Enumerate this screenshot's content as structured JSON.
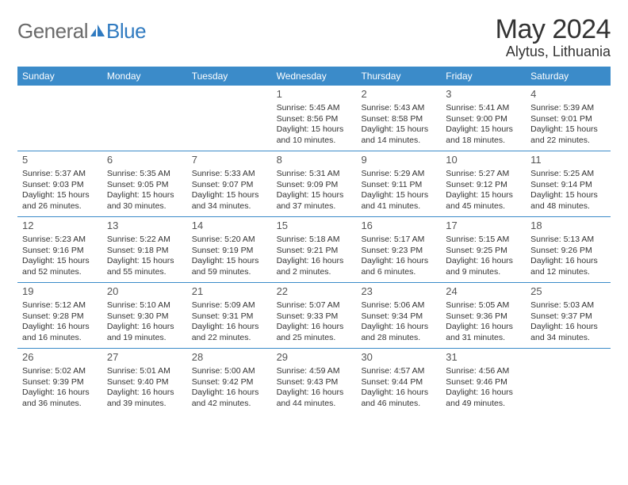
{
  "logo": {
    "text1": "General",
    "text2": "Blue"
  },
  "header": {
    "month": "May 2024",
    "location": "Alytus, Lithuania"
  },
  "colors": {
    "headerbar_bg": "#3b8bc9",
    "headerbar_text": "#ffffff",
    "row_border": "#3b8bc9",
    "logo_gray": "#6a6a6a",
    "logo_blue": "#2f7ac0",
    "title_text": "#333333",
    "body_text": "#333333",
    "page_bg": "#ffffff"
  },
  "weekdays": [
    "Sunday",
    "Monday",
    "Tuesday",
    "Wednesday",
    "Thursday",
    "Friday",
    "Saturday"
  ],
  "weeks": [
    [
      null,
      null,
      null,
      {
        "n": "1",
        "sunrise": "Sunrise: 5:45 AM",
        "sunset": "Sunset: 8:56 PM",
        "day1": "Daylight: 15 hours",
        "day2": "and 10 minutes."
      },
      {
        "n": "2",
        "sunrise": "Sunrise: 5:43 AM",
        "sunset": "Sunset: 8:58 PM",
        "day1": "Daylight: 15 hours",
        "day2": "and 14 minutes."
      },
      {
        "n": "3",
        "sunrise": "Sunrise: 5:41 AM",
        "sunset": "Sunset: 9:00 PM",
        "day1": "Daylight: 15 hours",
        "day2": "and 18 minutes."
      },
      {
        "n": "4",
        "sunrise": "Sunrise: 5:39 AM",
        "sunset": "Sunset: 9:01 PM",
        "day1": "Daylight: 15 hours",
        "day2": "and 22 minutes."
      }
    ],
    [
      {
        "n": "5",
        "sunrise": "Sunrise: 5:37 AM",
        "sunset": "Sunset: 9:03 PM",
        "day1": "Daylight: 15 hours",
        "day2": "and 26 minutes."
      },
      {
        "n": "6",
        "sunrise": "Sunrise: 5:35 AM",
        "sunset": "Sunset: 9:05 PM",
        "day1": "Daylight: 15 hours",
        "day2": "and 30 minutes."
      },
      {
        "n": "7",
        "sunrise": "Sunrise: 5:33 AM",
        "sunset": "Sunset: 9:07 PM",
        "day1": "Daylight: 15 hours",
        "day2": "and 34 minutes."
      },
      {
        "n": "8",
        "sunrise": "Sunrise: 5:31 AM",
        "sunset": "Sunset: 9:09 PM",
        "day1": "Daylight: 15 hours",
        "day2": "and 37 minutes."
      },
      {
        "n": "9",
        "sunrise": "Sunrise: 5:29 AM",
        "sunset": "Sunset: 9:11 PM",
        "day1": "Daylight: 15 hours",
        "day2": "and 41 minutes."
      },
      {
        "n": "10",
        "sunrise": "Sunrise: 5:27 AM",
        "sunset": "Sunset: 9:12 PM",
        "day1": "Daylight: 15 hours",
        "day2": "and 45 minutes."
      },
      {
        "n": "11",
        "sunrise": "Sunrise: 5:25 AM",
        "sunset": "Sunset: 9:14 PM",
        "day1": "Daylight: 15 hours",
        "day2": "and 48 minutes."
      }
    ],
    [
      {
        "n": "12",
        "sunrise": "Sunrise: 5:23 AM",
        "sunset": "Sunset: 9:16 PM",
        "day1": "Daylight: 15 hours",
        "day2": "and 52 minutes."
      },
      {
        "n": "13",
        "sunrise": "Sunrise: 5:22 AM",
        "sunset": "Sunset: 9:18 PM",
        "day1": "Daylight: 15 hours",
        "day2": "and 55 minutes."
      },
      {
        "n": "14",
        "sunrise": "Sunrise: 5:20 AM",
        "sunset": "Sunset: 9:19 PM",
        "day1": "Daylight: 15 hours",
        "day2": "and 59 minutes."
      },
      {
        "n": "15",
        "sunrise": "Sunrise: 5:18 AM",
        "sunset": "Sunset: 9:21 PM",
        "day1": "Daylight: 16 hours",
        "day2": "and 2 minutes."
      },
      {
        "n": "16",
        "sunrise": "Sunrise: 5:17 AM",
        "sunset": "Sunset: 9:23 PM",
        "day1": "Daylight: 16 hours",
        "day2": "and 6 minutes."
      },
      {
        "n": "17",
        "sunrise": "Sunrise: 5:15 AM",
        "sunset": "Sunset: 9:25 PM",
        "day1": "Daylight: 16 hours",
        "day2": "and 9 minutes."
      },
      {
        "n": "18",
        "sunrise": "Sunrise: 5:13 AM",
        "sunset": "Sunset: 9:26 PM",
        "day1": "Daylight: 16 hours",
        "day2": "and 12 minutes."
      }
    ],
    [
      {
        "n": "19",
        "sunrise": "Sunrise: 5:12 AM",
        "sunset": "Sunset: 9:28 PM",
        "day1": "Daylight: 16 hours",
        "day2": "and 16 minutes."
      },
      {
        "n": "20",
        "sunrise": "Sunrise: 5:10 AM",
        "sunset": "Sunset: 9:30 PM",
        "day1": "Daylight: 16 hours",
        "day2": "and 19 minutes."
      },
      {
        "n": "21",
        "sunrise": "Sunrise: 5:09 AM",
        "sunset": "Sunset: 9:31 PM",
        "day1": "Daylight: 16 hours",
        "day2": "and 22 minutes."
      },
      {
        "n": "22",
        "sunrise": "Sunrise: 5:07 AM",
        "sunset": "Sunset: 9:33 PM",
        "day1": "Daylight: 16 hours",
        "day2": "and 25 minutes."
      },
      {
        "n": "23",
        "sunrise": "Sunrise: 5:06 AM",
        "sunset": "Sunset: 9:34 PM",
        "day1": "Daylight: 16 hours",
        "day2": "and 28 minutes."
      },
      {
        "n": "24",
        "sunrise": "Sunrise: 5:05 AM",
        "sunset": "Sunset: 9:36 PM",
        "day1": "Daylight: 16 hours",
        "day2": "and 31 minutes."
      },
      {
        "n": "25",
        "sunrise": "Sunrise: 5:03 AM",
        "sunset": "Sunset: 9:37 PM",
        "day1": "Daylight: 16 hours",
        "day2": "and 34 minutes."
      }
    ],
    [
      {
        "n": "26",
        "sunrise": "Sunrise: 5:02 AM",
        "sunset": "Sunset: 9:39 PM",
        "day1": "Daylight: 16 hours",
        "day2": "and 36 minutes."
      },
      {
        "n": "27",
        "sunrise": "Sunrise: 5:01 AM",
        "sunset": "Sunset: 9:40 PM",
        "day1": "Daylight: 16 hours",
        "day2": "and 39 minutes."
      },
      {
        "n": "28",
        "sunrise": "Sunrise: 5:00 AM",
        "sunset": "Sunset: 9:42 PM",
        "day1": "Daylight: 16 hours",
        "day2": "and 42 minutes."
      },
      {
        "n": "29",
        "sunrise": "Sunrise: 4:59 AM",
        "sunset": "Sunset: 9:43 PM",
        "day1": "Daylight: 16 hours",
        "day2": "and 44 minutes."
      },
      {
        "n": "30",
        "sunrise": "Sunrise: 4:57 AM",
        "sunset": "Sunset: 9:44 PM",
        "day1": "Daylight: 16 hours",
        "day2": "and 46 minutes."
      },
      {
        "n": "31",
        "sunrise": "Sunrise: 4:56 AM",
        "sunset": "Sunset: 9:46 PM",
        "day1": "Daylight: 16 hours",
        "day2": "and 49 minutes."
      },
      null
    ]
  ]
}
